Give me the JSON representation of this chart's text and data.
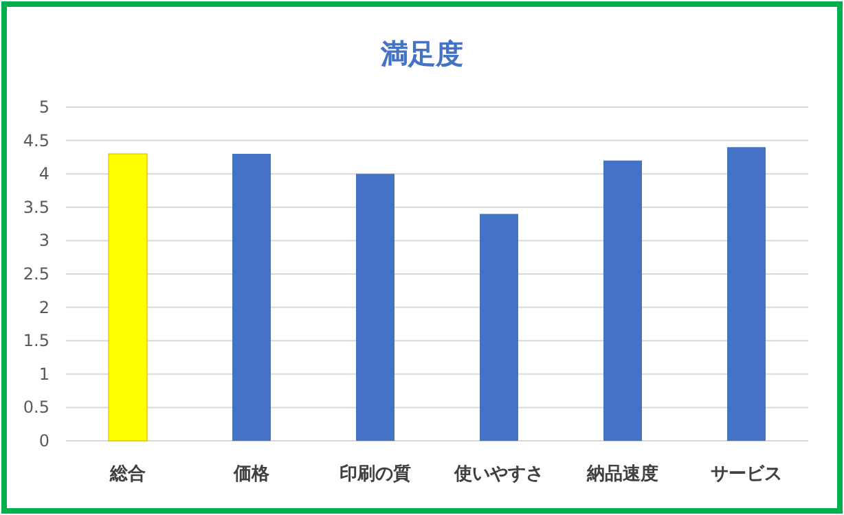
{
  "chart_data": {
    "type": "bar",
    "title": "満足度",
    "categories": [
      "総合",
      "価格",
      "印刷の質",
      "使いやすさ",
      "納品速度",
      "サービス"
    ],
    "values": [
      4.3,
      4.3,
      4.0,
      3.4,
      4.2,
      4.4
    ],
    "colors": [
      "#ffff00",
      "#4472c4",
      "#4472c4",
      "#4472c4",
      "#4472c4",
      "#4472c4"
    ],
    "ylim": [
      0,
      5
    ],
    "yticks": [
      0,
      0.5,
      1,
      1.5,
      2,
      2.5,
      3,
      3.5,
      4,
      4.5,
      5
    ],
    "grid": "y"
  }
}
